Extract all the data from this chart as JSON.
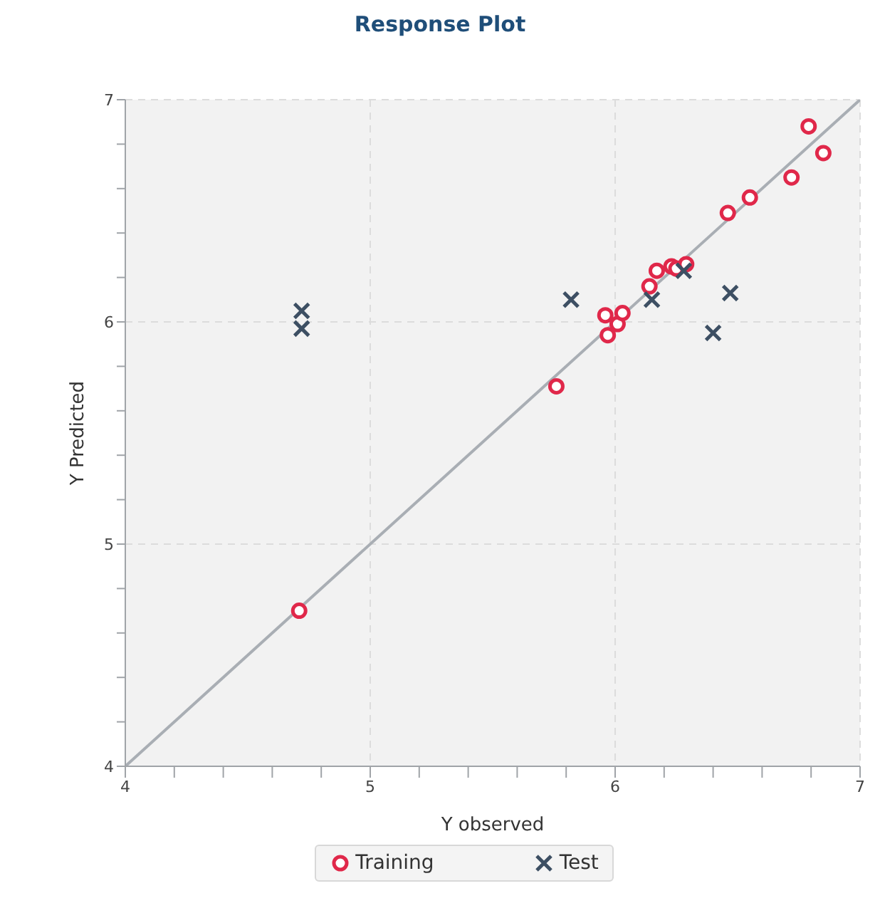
{
  "chart_data": {
    "type": "scatter",
    "title": "Response Plot",
    "xlabel": "Y observed",
    "ylabel": "Y Predicted",
    "xlim": [
      4,
      7
    ],
    "ylim": [
      4,
      7
    ],
    "xticks": [
      4,
      {
        "value": 4.2,
        "label": null
      },
      {
        "value": 4.4,
        "label": null
      },
      {
        "value": 4.6,
        "label": null
      },
      {
        "value": 4.8,
        "label": null
      },
      5,
      {
        "value": 5.2,
        "label": null
      },
      {
        "value": 5.4,
        "label": null
      },
      {
        "value": 5.6,
        "label": null
      },
      {
        "value": 5.8,
        "label": null
      },
      6,
      {
        "value": 6.2,
        "label": null
      },
      {
        "value": 6.4,
        "label": null
      },
      {
        "value": 6.6,
        "label": null
      },
      {
        "value": 6.8,
        "label": null
      },
      7
    ],
    "yticks": [
      4,
      {
        "value": 4.2,
        "label": null
      },
      {
        "value": 4.4,
        "label": null
      },
      {
        "value": 4.6,
        "label": null
      },
      {
        "value": 4.8,
        "label": null
      },
      5,
      {
        "value": 5.2,
        "label": null
      },
      {
        "value": 5.4,
        "label": null
      },
      {
        "value": 5.6,
        "label": null
      },
      {
        "value": 5.8,
        "label": null
      },
      6,
      {
        "value": 6.2,
        "label": null
      },
      {
        "value": 6.4,
        "label": null
      },
      {
        "value": 6.6,
        "label": null
      },
      {
        "value": 6.8,
        "label": null
      },
      7
    ],
    "grid": true,
    "legend": "bottom",
    "series": [
      {
        "type": "line",
        "color": "#a9aeb4",
        "marker": "none",
        "x": [
          4,
          7
        ],
        "values": [
          4,
          7
        ]
      },
      {
        "name": "Training",
        "color": "#e0284a",
        "marker": "circle",
        "x": [
          4.71,
          5.76,
          5.96,
          5.97,
          6.01,
          6.03,
          6.14,
          6.17,
          6.23,
          6.25,
          6.29,
          6.46,
          6.55,
          6.72,
          6.79,
          6.85
        ],
        "values": [
          4.7,
          5.71,
          6.03,
          5.94,
          5.99,
          6.04,
          6.16,
          6.23,
          6.25,
          6.24,
          6.26,
          6.49,
          6.56,
          6.65,
          6.88,
          6.76
        ]
      },
      {
        "name": "Test",
        "color": "#3d4f63",
        "marker": "cross",
        "x": [
          4.72,
          4.72,
          5.82,
          6.15,
          6.28,
          6.47,
          6.4
        ],
        "values": [
          6.05,
          5.97,
          6.1,
          6.1,
          6.23,
          6.13,
          5.95
        ]
      }
    ]
  }
}
